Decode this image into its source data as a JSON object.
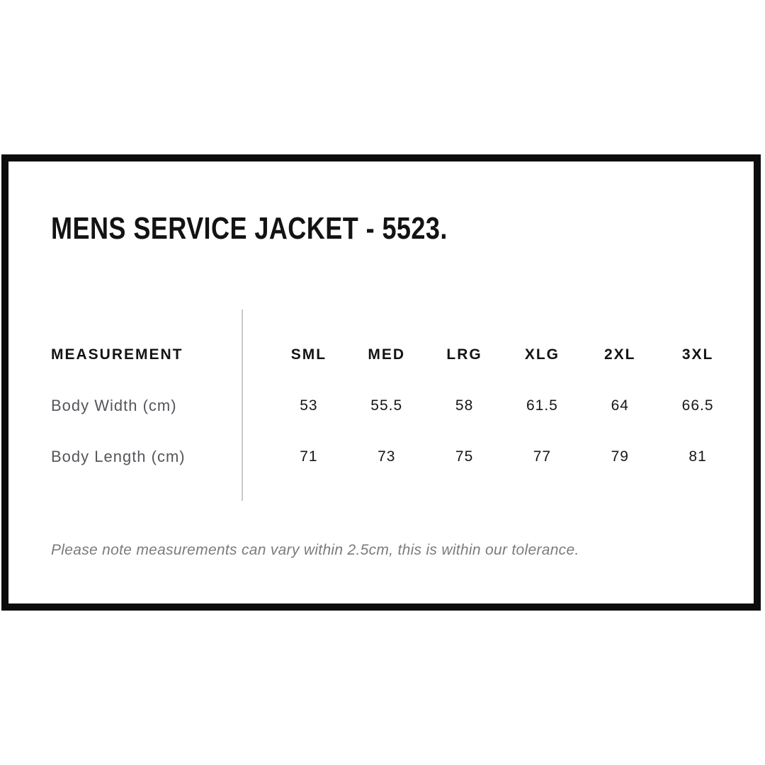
{
  "title": "MENS SERVICE JACKET - 5523.",
  "note": "Please note measurements can vary within 2.5cm, this is within our tolerance.",
  "table": {
    "measurement_header": "MEASUREMENT",
    "size_headers": [
      "SML",
      "MED",
      "LRG",
      "XLG",
      "2XL",
      "3XL"
    ],
    "rows": [
      {
        "label": "Body Width (cm)",
        "values": [
          "53",
          "55.5",
          "58",
          "61.5",
          "64",
          "66.5"
        ]
      },
      {
        "label": "Body Length (cm)",
        "values": [
          "71",
          "73",
          "75",
          "77",
          "79",
          "81"
        ]
      }
    ]
  },
  "colors": {
    "text_black": "#131313",
    "label_gray": "#55565a",
    "note_gray": "#7a7b7e",
    "divider_gray": "#c9c9cb",
    "border_black": "#0c0c0c",
    "background": "#ffffff"
  },
  "chart_data": {
    "type": "table",
    "title": "MENS SERVICE JACKET - 5523.",
    "columns": [
      "MEASUREMENT",
      "SML",
      "MED",
      "LRG",
      "XLG",
      "2XL",
      "3XL"
    ],
    "rows": [
      [
        "Body Width (cm)",
        53,
        55.5,
        58,
        61.5,
        64,
        66.5
      ],
      [
        "Body Length (cm)",
        71,
        73,
        75,
        77,
        79,
        81
      ]
    ],
    "units": "cm",
    "note": "Please note measurements can vary within 2.5cm, this is within our tolerance."
  }
}
